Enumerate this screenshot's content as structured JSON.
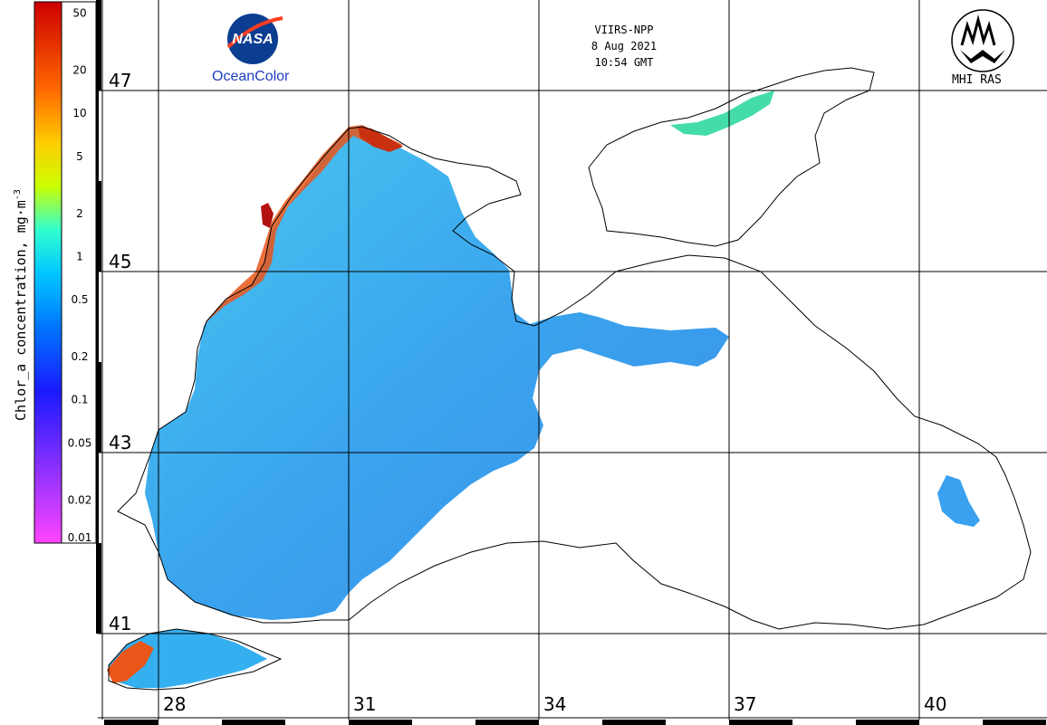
{
  "header": {
    "sensor": "VIIRS-NPP",
    "date": "8 Aug 2021",
    "time": "10:54 GMT"
  },
  "logos": {
    "nasa_text": "NASA",
    "oceancolor_text": "OceanColor",
    "mhi_text": "MHI RAS"
  },
  "colorbar": {
    "title": "Chlor_a concentration, mg·m",
    "title_sup": "-3",
    "ticks": [
      "50",
      "20",
      "10",
      "5",
      "2",
      "1",
      "0.5",
      "0.2",
      "0.1",
      "0.05",
      "0.02",
      "0.01"
    ],
    "tick_values": [
      50,
      20,
      10,
      5,
      2,
      1,
      0.5,
      0.2,
      0.1,
      0.05,
      0.02,
      0.01
    ],
    "range": [
      0.01,
      60
    ],
    "scale": "log",
    "colors_low_to_high": [
      "#ff44ff",
      "#9a33ff",
      "#1a1aff",
      "#0077ff",
      "#00c8ff",
      "#33ffcc",
      "#ccff00",
      "#ffcc00",
      "#ff6600",
      "#cc0000"
    ]
  },
  "grid": {
    "latitudes": [
      "47",
      "45",
      "43",
      "41"
    ],
    "longitudes": [
      "28",
      "31",
      "34",
      "37",
      "40"
    ]
  },
  "colors": {
    "land_line": "#000000",
    "water_low": "#3aa0f0",
    "water_mid": "#34c8f0",
    "coast_high": "#e84a10"
  }
}
